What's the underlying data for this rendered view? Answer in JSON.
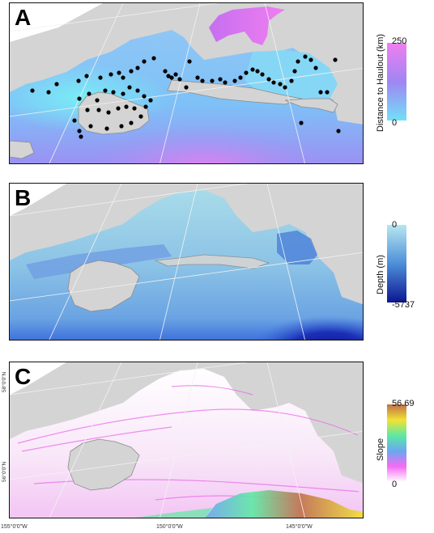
{
  "panels": {
    "A": {
      "letter": "A",
      "legend": {
        "title": "Distance to Haulout (km)",
        "max": "250",
        "min": "0",
        "colors": [
          "#f07ef0",
          "#9f86f3",
          "#72e0f7"
        ]
      }
    },
    "B": {
      "letter": "B",
      "legend": {
        "title": "Depth (m)",
        "max": "0",
        "min": "-5737",
        "colors": [
          "#b7e7ee",
          "#4d8fda",
          "#0c1690"
        ]
      }
    },
    "C": {
      "letter": "C",
      "legend": {
        "title": "Slope",
        "max": "56.69",
        "min": "0",
        "colors": [
          "#c0704a",
          "#f2e233",
          "#5de9a3",
          "#6aa7f0",
          "#f56bf3",
          "#ffffff"
        ]
      }
    }
  },
  "axes": {
    "lat_labels": [
      "58°0'0\"N",
      "56°0'0\"N"
    ],
    "lon_labels": [
      "155°0'0\"W",
      "150°0'0\"W",
      "145°0'0\"W"
    ]
  },
  "colors": {
    "land": "#d4d4d4",
    "coast": "#8a8a8a",
    "grid": "#f2f2f2",
    "points": "#000000"
  }
}
